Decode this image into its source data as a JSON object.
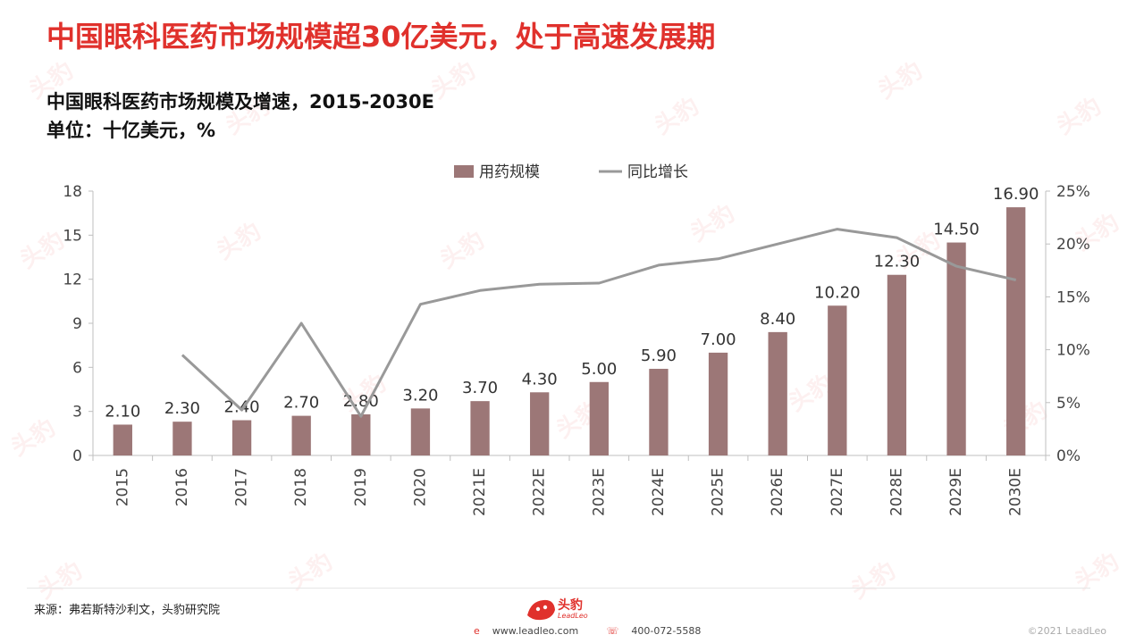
{
  "headline": "中国眼科医药市场规模超30亿美元，处于高速发展期",
  "subtitle_line1": "中国眼科医药市场规模及增速，2015-2030E",
  "subtitle_line2": "单位：十亿美元，%",
  "source": "来源：弗若斯特沙利文，头豹研究院",
  "logo_text": "头豹",
  "logo_sub": "LeadLeo",
  "website": "www.leadleo.com",
  "phone": "400-072-5588",
  "copyright": "©2021 LeadLeo",
  "watermark": "头豹",
  "colors": {
    "bar": "#9c7777",
    "line": "#999999",
    "headline": "#e0312c"
  },
  "chart_data": {
    "type": "bar",
    "categories": [
      "2015",
      "2016",
      "2017",
      "2018",
      "2019",
      "2020",
      "2021E",
      "2022E",
      "2023E",
      "2024E",
      "2025E",
      "2026E",
      "2027E",
      "2028E",
      "2029E",
      "2030E"
    ],
    "series": [
      {
        "name": "用药规模",
        "type": "bar",
        "axis": "left",
        "values": [
          2.1,
          2.3,
          2.4,
          2.7,
          2.8,
          3.2,
          3.7,
          4.3,
          5.0,
          5.9,
          7.0,
          8.4,
          10.2,
          12.3,
          14.5,
          16.9
        ],
        "labels": [
          "2.10",
          "2.30",
          "2.40",
          "2.70",
          "2.80",
          "3.20",
          "3.70",
          "4.30",
          "5.00",
          "5.90",
          "7.00",
          "8.40",
          "10.20",
          "12.30",
          "14.50",
          "16.90"
        ]
      },
      {
        "name": "同比增长",
        "type": "line",
        "axis": "right",
        "values": [
          null,
          9.5,
          4.3,
          12.5,
          3.7,
          14.3,
          15.6,
          16.2,
          16.3,
          18.0,
          18.6,
          20.0,
          21.4,
          20.6,
          17.9,
          16.6
        ]
      }
    ],
    "y_left": {
      "ylim": [
        0,
        18
      ],
      "ticks": [
        0,
        3,
        6,
        9,
        12,
        15,
        18
      ]
    },
    "y_right": {
      "ylim": [
        0,
        25
      ],
      "ticks": [
        "0%",
        "5%",
        "10%",
        "15%",
        "20%",
        "25%"
      ]
    },
    "legend_position": "top-center",
    "grid": false
  }
}
